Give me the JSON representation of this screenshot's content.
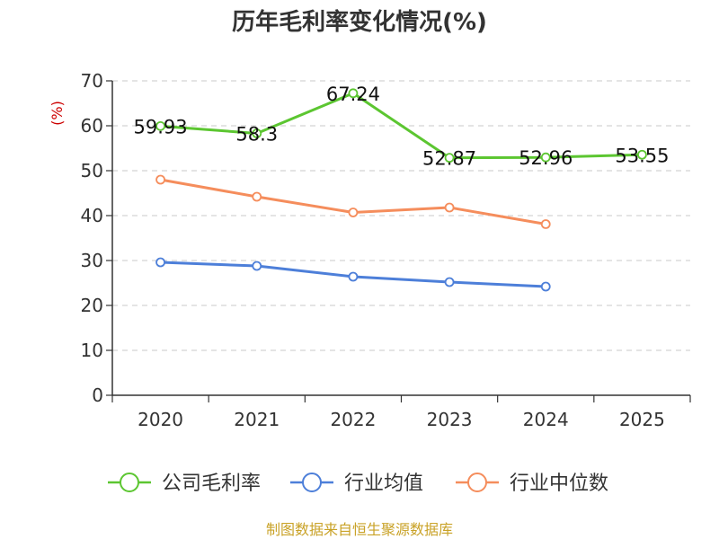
{
  "chart_data": {
    "type": "line",
    "title": "历年毛利率变化情况(%)",
    "ylabel": "(%)",
    "xlabel": "",
    "categories": [
      "2020",
      "2021",
      "2022",
      "2023",
      "2024",
      "2025"
    ],
    "ylim": [
      0,
      70
    ],
    "yticks": [
      0,
      10,
      20,
      30,
      40,
      50,
      60,
      70
    ],
    "grid": true,
    "legend_position": "bottom",
    "series": [
      {
        "name": "公司毛利率",
        "color": "#5cc631",
        "values": [
          59.93,
          58.3,
          67.24,
          52.87,
          52.96,
          53.55
        ],
        "labels": [
          "59.93",
          "58.3",
          "67.24",
          "52.87",
          "52.96",
          "53.55"
        ]
      },
      {
        "name": "行业均值",
        "color": "#4d7fd9",
        "values": [
          29.6,
          28.8,
          26.4,
          25.2,
          24.2,
          null
        ],
        "labels": []
      },
      {
        "name": "行业中位数",
        "color": "#f58d5c",
        "values": [
          48.0,
          44.2,
          40.7,
          41.8,
          38.1,
          null
        ],
        "labels": []
      }
    ],
    "source": "制图数据来自恒生聚源数据库"
  }
}
